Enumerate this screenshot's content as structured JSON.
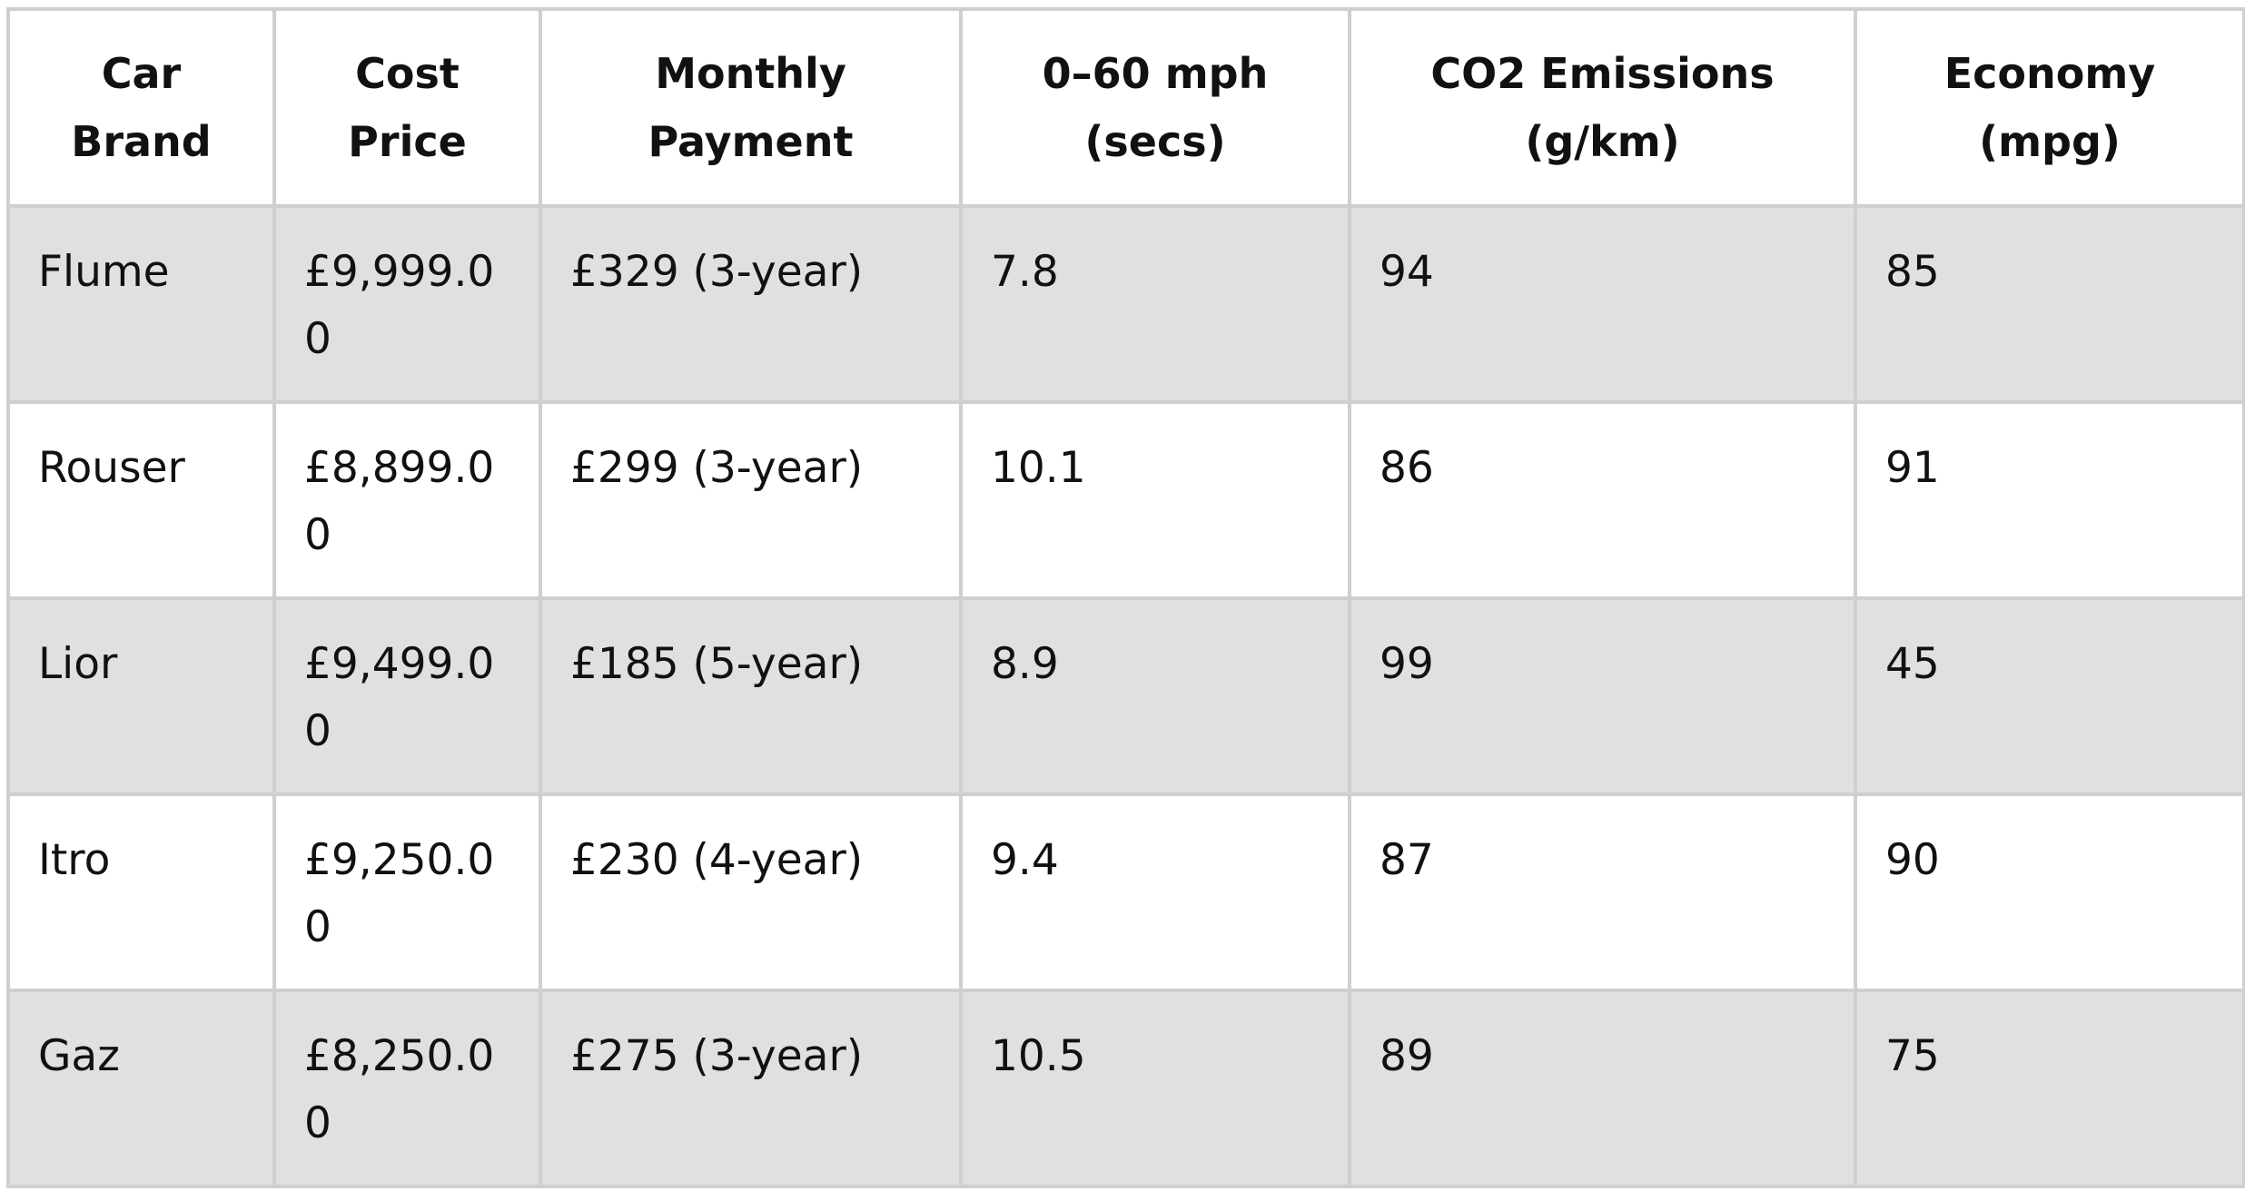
{
  "table": {
    "headers": [
      [
        "Car",
        "Brand"
      ],
      [
        "Cost",
        "Price"
      ],
      [
        "Monthly",
        "Payment"
      ],
      [
        "0–60 mph",
        "(secs)"
      ],
      [
        "CO2 Emissions",
        "(g/km)"
      ],
      [
        "Economy",
        "(mpg)"
      ]
    ],
    "rows": [
      [
        "Flume",
        "£9,999.00",
        "£329 (3-year)",
        "7.8",
        "94",
        "85"
      ],
      [
        "Rouser",
        "£8,899.00",
        "£299 (3-year)",
        "10.1",
        "86",
        "91"
      ],
      [
        "Lior",
        "£9,499.00",
        "£185 (5-year)",
        "8.9",
        "99",
        "45"
      ],
      [
        "Itro",
        "£9,250.00",
        "£230 (4-year)",
        "9.4",
        "87",
        "90"
      ],
      [
        "Gaz",
        "£8,250.00",
        "£275 (3-year)",
        "10.5",
        "89",
        "75"
      ]
    ],
    "colors": {
      "border": "#cfcfcf",
      "shaded_row": "#e0e0e0",
      "plain_row": "#ffffff",
      "text": "#111111"
    }
  }
}
